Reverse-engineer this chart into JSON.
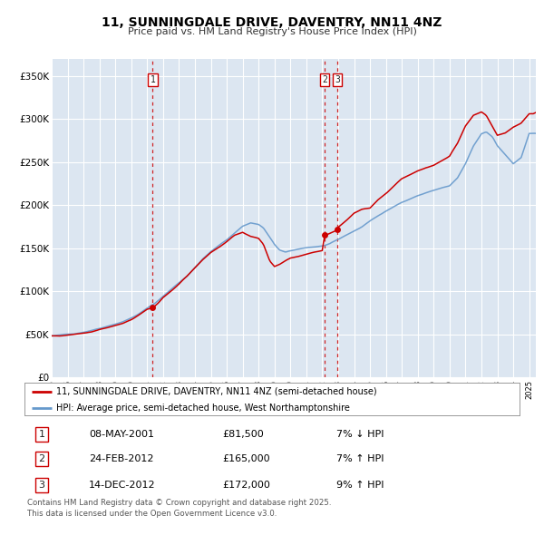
{
  "title": "11, SUNNINGDALE DRIVE, DAVENTRY, NN11 4NZ",
  "subtitle": "Price paid vs. HM Land Registry's House Price Index (HPI)",
  "legend_line1": "11, SUNNINGDALE DRIVE, DAVENTRY, NN11 4NZ (semi-detached house)",
  "legend_line2": "HPI: Average price, semi-detached house, West Northamptonshire",
  "footer": "Contains HM Land Registry data © Crown copyright and database right 2025.\nThis data is licensed under the Open Government Licence v3.0.",
  "transactions": [
    {
      "id": 1,
      "date": "08-MAY-2001",
      "price": 81500,
      "pct": "7%",
      "dir": "↓",
      "ref": "HPI",
      "year": 2001.35
    },
    {
      "id": 2,
      "date": "24-FEB-2012",
      "price": 165000,
      "pct": "7%",
      "dir": "↑",
      "ref": "HPI",
      "year": 2012.14
    },
    {
      "id": 3,
      "date": "14-DEC-2012",
      "price": 172000,
      "pct": "9%",
      "dir": "↑",
      "ref": "HPI",
      "year": 2012.95
    }
  ],
  "line_color_red": "#cc0000",
  "line_color_blue": "#6699cc",
  "background_color": "#dce6f1",
  "plot_bg": "#dce6f1",
  "grid_color": "#ffffff",
  "ylim": [
    0,
    370000
  ],
  "yticks": [
    0,
    50000,
    100000,
    150000,
    200000,
    250000,
    300000,
    350000
  ],
  "start_year": 1995,
  "end_year": 2025,
  "hpi_waypoints_x": [
    1995.0,
    1995.5,
    1996.0,
    1996.5,
    1997.0,
    1997.5,
    1998.0,
    1998.5,
    1999.0,
    1999.5,
    2000.0,
    2000.5,
    2001.0,
    2001.5,
    2002.0,
    2002.5,
    2003.0,
    2003.5,
    2004.0,
    2004.5,
    2005.0,
    2005.5,
    2006.0,
    2006.5,
    2007.0,
    2007.5,
    2008.0,
    2008.3,
    2008.7,
    2009.0,
    2009.3,
    2009.7,
    2010.0,
    2010.5,
    2011.0,
    2011.5,
    2012.0,
    2012.5,
    2013.0,
    2013.5,
    2014.0,
    2014.5,
    2015.0,
    2015.5,
    2016.0,
    2016.5,
    2017.0,
    2017.5,
    2018.0,
    2018.5,
    2019.0,
    2019.5,
    2020.0,
    2020.5,
    2021.0,
    2021.5,
    2022.0,
    2022.3,
    2022.7,
    2023.0,
    2023.5,
    2024.0,
    2024.5,
    2025.0
  ],
  "hpi_waypoints_y": [
    48000,
    48500,
    49500,
    51000,
    53000,
    55500,
    58000,
    61000,
    64000,
    67000,
    71000,
    76000,
    82000,
    88000,
    96000,
    104000,
    112000,
    120000,
    130000,
    140000,
    148000,
    155000,
    162000,
    170000,
    178000,
    182000,
    180000,
    176000,
    165000,
    156000,
    150000,
    147000,
    148000,
    150000,
    152000,
    153000,
    154000,
    156000,
    160000,
    165000,
    170000,
    175000,
    182000,
    188000,
    193000,
    198000,
    204000,
    208000,
    212000,
    215000,
    218000,
    221000,
    223000,
    232000,
    248000,
    268000,
    282000,
    284000,
    278000,
    268000,
    258000,
    248000,
    255000,
    283000
  ],
  "red_waypoints_x": [
    1995.0,
    1995.5,
    1996.0,
    1996.5,
    1997.0,
    1997.5,
    1998.0,
    1998.5,
    1999.0,
    1999.5,
    2000.0,
    2000.5,
    2001.0,
    2001.35,
    2001.7,
    2002.0,
    2002.5,
    2003.0,
    2003.5,
    2004.0,
    2004.5,
    2005.0,
    2005.5,
    2006.0,
    2006.5,
    2007.0,
    2007.5,
    2008.0,
    2008.3,
    2008.7,
    2009.0,
    2009.3,
    2009.7,
    2010.0,
    2010.5,
    2011.0,
    2011.5,
    2012.0,
    2012.14,
    2012.5,
    2012.95,
    2013.0,
    2013.5,
    2014.0,
    2014.5,
    2015.0,
    2015.5,
    2016.0,
    2016.5,
    2017.0,
    2017.5,
    2018.0,
    2018.5,
    2019.0,
    2019.5,
    2020.0,
    2020.5,
    2021.0,
    2021.5,
    2022.0,
    2022.3,
    2022.7,
    2023.0,
    2023.5,
    2024.0,
    2024.5,
    2025.0
  ],
  "red_waypoints_y": [
    48000,
    48000,
    49000,
    50500,
    52000,
    54000,
    57000,
    59500,
    62000,
    65000,
    69000,
    74000,
    80000,
    81500,
    87000,
    93000,
    101000,
    109000,
    118000,
    128000,
    138000,
    146000,
    152000,
    159000,
    166000,
    170000,
    165000,
    162000,
    155000,
    135000,
    128000,
    130000,
    135000,
    138000,
    140000,
    143000,
    146000,
    148000,
    165000,
    168000,
    172000,
    175000,
    183000,
    192000,
    196000,
    198000,
    208000,
    216000,
    225000,
    233000,
    238000,
    243000,
    247000,
    250000,
    255000,
    260000,
    275000,
    295000,
    308000,
    312000,
    308000,
    295000,
    285000,
    288000,
    295000,
    300000,
    310000
  ]
}
